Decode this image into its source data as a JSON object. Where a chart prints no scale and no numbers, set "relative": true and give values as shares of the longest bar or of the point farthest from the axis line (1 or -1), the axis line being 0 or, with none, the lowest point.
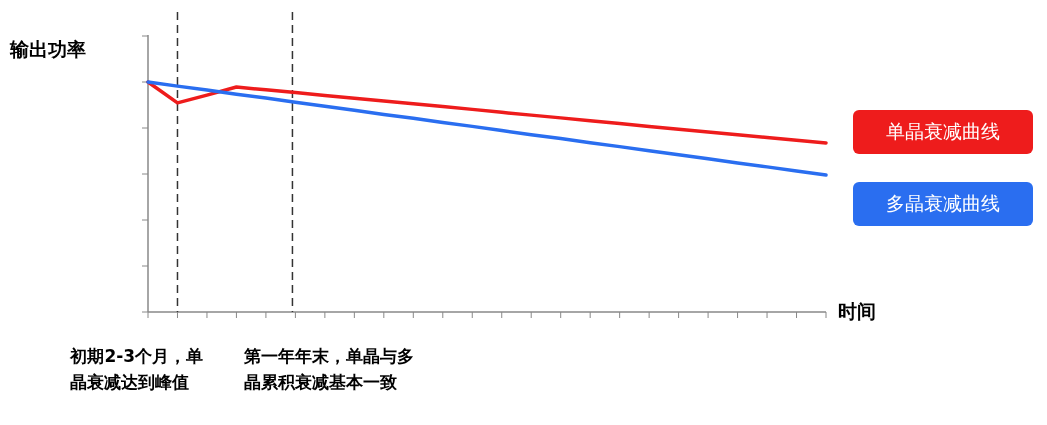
{
  "chart_data": {
    "type": "line",
    "ylabel": "输出功率",
    "xlabel": "时间",
    "relative": true,
    "legend": "right",
    "categories": [
      null,
      null,
      null,
      null,
      null,
      null,
      null,
      null,
      null,
      null,
      null,
      null,
      null,
      null,
      null,
      null,
      null,
      null,
      null,
      null,
      null,
      null,
      null,
      null
    ],
    "series": [
      {
        "name": "单晶衰减曲线",
        "color": "#ee1c1c",
        "values": [
          1.0,
          0.909,
          0.943,
          0.978,
          0.966,
          0.954,
          0.941,
          0.929,
          0.917,
          0.905,
          0.893,
          0.881,
          0.868,
          0.856,
          0.844,
          0.832,
          0.82,
          0.807,
          0.795,
          0.783,
          0.771,
          0.759,
          0.747,
          0.735
        ]
      },
      {
        "name": "多晶衰减曲线",
        "color": "#2a6ef0",
        "values": [
          1.0,
          0.982,
          0.965,
          0.947,
          0.93,
          0.912,
          0.895,
          0.877,
          0.859,
          0.842,
          0.824,
          0.807,
          0.789,
          0.771,
          0.754,
          0.736,
          0.719,
          0.701,
          0.684,
          0.666,
          0.648,
          0.631,
          0.613,
          0.596
        ]
      }
    ],
    "annotations": [
      "初期2-3个月，单晶衰减达到峰值",
      "第一年年末，单晶与多晶累积衰减基本一致"
    ]
  }
}
